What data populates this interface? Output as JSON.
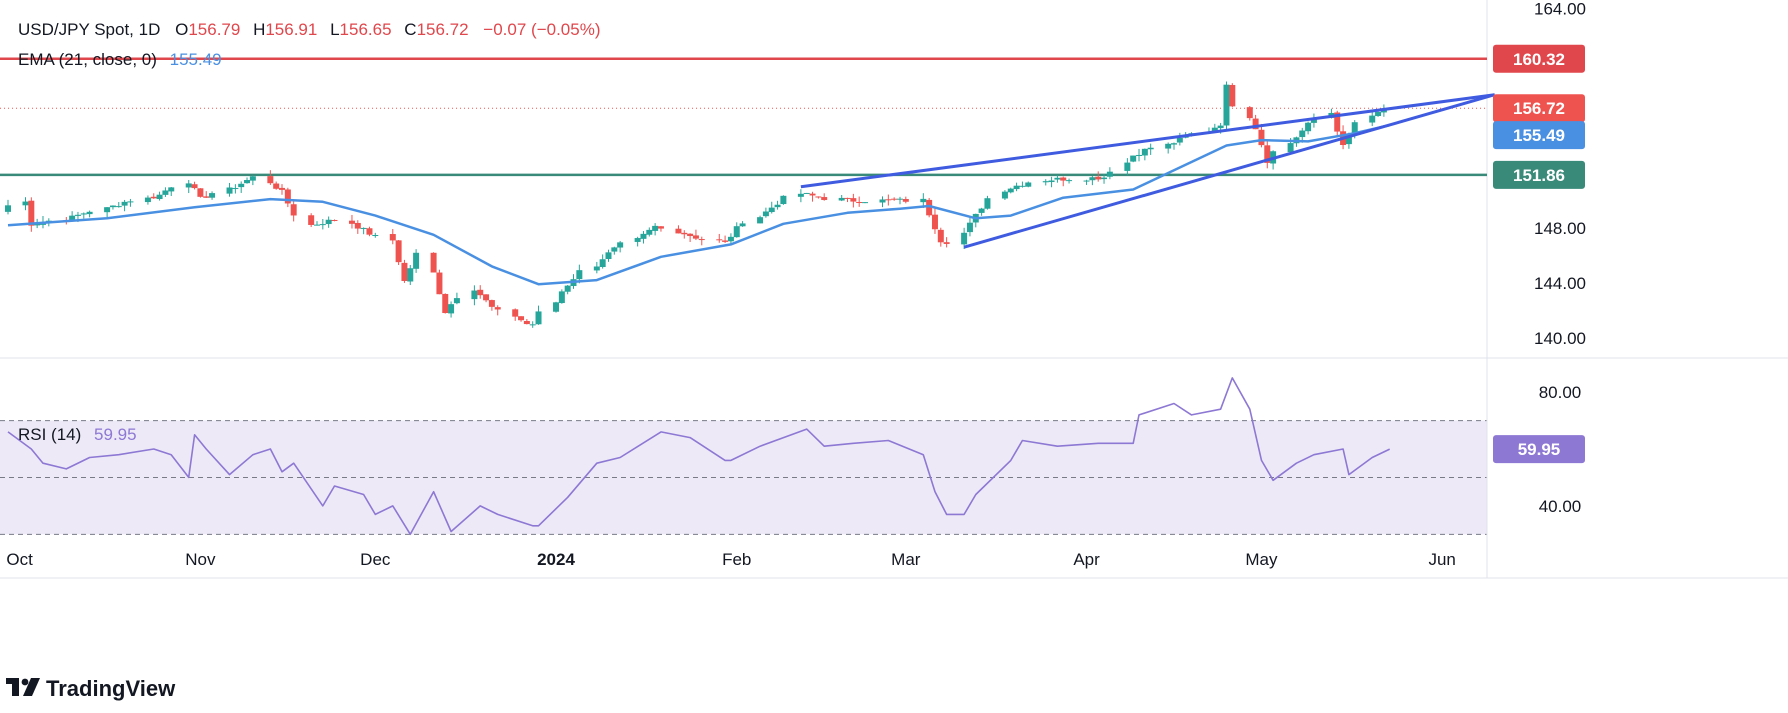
{
  "header": {
    "symbol": "USD/JPY Spot, 1D",
    "o_label": "O",
    "o_value": "156.79",
    "h_label": "H",
    "h_value": "156.91",
    "l_label": "L",
    "l_value": "156.65",
    "c_label": "C",
    "c_value": "156.72",
    "change": "−0.07 (−0.05%)"
  },
  "ema_legend": {
    "label": "EMA (21, close, 0)",
    "value": "155.49"
  },
  "rsi_legend": {
    "label": "RSI (14)",
    "value": "59.95"
  },
  "brand": {
    "name": "TradingView"
  },
  "colors": {
    "up": "#26a69a",
    "down": "#ef5350",
    "ema": "#4a90e2",
    "trend": "#3f5be0",
    "resistance": "#e0474c",
    "support": "#3a8a7a",
    "rsi": "#8d78d4",
    "rsi_band": "#ede9f7"
  },
  "chart_data": [
    {
      "type": "candlestick",
      "title": "USD/JPY Spot, 1D",
      "y_ticks": [
        140,
        144,
        148,
        152,
        156,
        160,
        164
      ],
      "y_tick_labels": [
        "140.00",
        "144.00",
        "148.00",
        "",
        "",
        "",
        "164.00"
      ],
      "ylim": [
        138.6,
        164.6
      ],
      "x_ticks": [
        "Oct",
        "Nov",
        "Dec",
        "2024",
        "Feb",
        "Mar",
        "Apr",
        "May",
        "Jun"
      ],
      "ohlc_keypoints": [
        [
          "2023-09-29",
          149.4
        ],
        [
          "2023-10-03",
          149.9
        ],
        [
          "2023-10-04",
          148.3
        ],
        [
          "2023-10-10",
          148.6
        ],
        [
          "2023-10-20",
          149.9
        ],
        [
          "2023-10-26",
          150.4
        ],
        [
          "2023-10-31",
          151.4
        ],
        [
          "2023-11-02",
          150.1
        ],
        [
          "2023-11-13",
          151.7
        ],
        [
          "2023-11-16",
          150.6
        ],
        [
          "2023-11-21",
          148.2
        ],
        [
          "2023-11-27",
          148.6
        ],
        [
          "2023-12-05",
          147.1
        ],
        [
          "2023-12-07",
          144.1
        ],
        [
          "2023-12-11",
          146.1
        ],
        [
          "2023-12-14",
          141.9
        ],
        [
          "2023-12-19",
          143.6
        ],
        [
          "2023-12-22",
          142.2
        ],
        [
          "2023-12-28",
          141.0
        ],
        [
          "2023-12-29",
          141.0
        ],
        [
          "2024-01-03",
          143.4
        ],
        [
          "2024-01-10",
          145.8
        ],
        [
          "2024-01-19",
          148.1
        ],
        [
          "2024-01-24",
          147.6
        ],
        [
          "2024-01-31",
          146.9
        ],
        [
          "2024-02-05",
          148.5
        ],
        [
          "2024-02-13",
          150.5
        ],
        [
          "2024-02-21",
          150.0
        ],
        [
          "2024-02-29",
          150.0
        ],
        [
          "2024-03-05",
          150.0
        ],
        [
          "2024-03-08",
          147.1
        ],
        [
          "2024-03-11",
          147.0
        ],
        [
          "2024-03-19",
          150.8
        ],
        [
          "2024-03-26",
          151.5
        ],
        [
          "2024-04-05",
          151.7
        ],
        [
          "2024-04-10",
          153.3
        ],
        [
          "2024-04-19",
          154.6
        ],
        [
          "2024-04-25",
          155.6
        ],
        [
          "2024-04-26",
          158.3
        ],
        [
          "2024-04-29",
          157.0
        ],
        [
          "2024-05-01",
          155.3
        ],
        [
          "2024-05-03",
          152.9
        ],
        [
          "2024-05-07",
          154.2
        ],
        [
          "2024-05-14",
          156.4
        ],
        [
          "2024-05-16",
          153.9
        ],
        [
          "2024-05-20",
          155.7
        ],
        [
          "2024-05-23",
          156.72
        ]
      ],
      "last_close": 156.72,
      "ema": {
        "name": "EMA (21, close, 0)",
        "keypoints": [
          [
            "2023-09-29",
            148.2
          ],
          [
            "2023-10-16",
            148.7
          ],
          [
            "2023-10-31",
            149.5
          ],
          [
            "2023-11-13",
            150.1
          ],
          [
            "2023-11-22",
            149.9
          ],
          [
            "2023-12-01",
            148.9
          ],
          [
            "2023-12-11",
            147.5
          ],
          [
            "2023-12-21",
            145.2
          ],
          [
            "2023-12-29",
            143.9
          ],
          [
            "2024-01-08",
            144.2
          ],
          [
            "2024-01-19",
            145.9
          ],
          [
            "2024-01-31",
            146.8
          ],
          [
            "2024-02-09",
            148.3
          ],
          [
            "2024-02-20",
            149.1
          ],
          [
            "2024-02-29",
            149.4
          ],
          [
            "2024-03-05",
            149.6
          ],
          [
            "2024-03-13",
            148.7
          ],
          [
            "2024-03-19",
            148.9
          ],
          [
            "2024-03-28",
            150.2
          ],
          [
            "2024-04-09",
            150.8
          ],
          [
            "2024-04-17",
            152.4
          ],
          [
            "2024-04-25",
            154.0
          ],
          [
            "2024-05-01",
            154.4
          ],
          [
            "2024-05-09",
            154.3
          ],
          [
            "2024-05-17",
            154.9
          ],
          [
            "2024-05-23",
            155.49
          ]
        ],
        "last": 155.49
      },
      "levels": [
        {
          "name": "resistance",
          "value": 160.32,
          "label": "160.32"
        },
        {
          "name": "support",
          "value": 151.86,
          "label": "151.86"
        }
      ],
      "price_labels": {
        "last": "156.72",
        "ema": "155.49"
      },
      "trendlines": [
        {
          "name": "upper-trendline",
          "from": [
            "2024-02-12",
            151.0
          ],
          "to": [
            "2024-06-10",
            157.7
          ]
        },
        {
          "name": "lower-trendline",
          "from": [
            "2024-03-11",
            146.6
          ],
          "to": [
            "2024-06-10",
            157.7
          ]
        }
      ]
    },
    {
      "type": "line",
      "title": "RSI (14)",
      "y_ticks": [
        40,
        80
      ],
      "y_tick_labels": [
        "40.00",
        "80.00"
      ],
      "ylim": [
        28,
        92
      ],
      "band": [
        30,
        70
      ],
      "mid_line": 50,
      "series": [
        {
          "name": "RSI (14)",
          "keypoints": [
            [
              "2023-09-29",
              66
            ],
            [
              "2023-10-03",
              60
            ],
            [
              "2023-10-05",
              55
            ],
            [
              "2023-10-09",
              53
            ],
            [
              "2023-10-13",
              57
            ],
            [
              "2023-10-18",
              58
            ],
            [
              "2023-10-24",
              60
            ],
            [
              "2023-10-27",
              58
            ],
            [
              "2023-10-30",
              50
            ],
            [
              "2023-10-31",
              65
            ],
            [
              "2023-11-02",
              60
            ],
            [
              "2023-11-06",
              51
            ],
            [
              "2023-11-10",
              58
            ],
            [
              "2023-11-13",
              60
            ],
            [
              "2023-11-15",
              52
            ],
            [
              "2023-11-17",
              55
            ],
            [
              "2023-11-22",
              40
            ],
            [
              "2023-11-24",
              47
            ],
            [
              "2023-11-29",
              44
            ],
            [
              "2023-12-01",
              37
            ],
            [
              "2023-12-04",
              40
            ],
            [
              "2023-12-07",
              30
            ],
            [
              "2023-12-11",
              45
            ],
            [
              "2023-12-14",
              31
            ],
            [
              "2023-12-19",
              40
            ],
            [
              "2023-12-22",
              37
            ],
            [
              "2023-12-28",
              33
            ],
            [
              "2023-12-29",
              33
            ],
            [
              "2024-01-03",
              43
            ],
            [
              "2024-01-08",
              55
            ],
            [
              "2024-01-12",
              57
            ],
            [
              "2024-01-19",
              66
            ],
            [
              "2024-01-24",
              64
            ],
            [
              "2024-01-30",
              56
            ],
            [
              "2024-01-31",
              56
            ],
            [
              "2024-02-05",
              61
            ],
            [
              "2024-02-13",
              67
            ],
            [
              "2024-02-16",
              61
            ],
            [
              "2024-02-21",
              62
            ],
            [
              "2024-02-27",
              63
            ],
            [
              "2024-03-04",
              58
            ],
            [
              "2024-03-06",
              45
            ],
            [
              "2024-03-08",
              37
            ],
            [
              "2024-03-11",
              37
            ],
            [
              "2024-03-13",
              44
            ],
            [
              "2024-03-19",
              56
            ],
            [
              "2024-03-21",
              63
            ],
            [
              "2024-03-27",
              61
            ],
            [
              "2024-04-03",
              62
            ],
            [
              "2024-04-09",
              62
            ],
            [
              "2024-04-10",
              72
            ],
            [
              "2024-04-16",
              76
            ],
            [
              "2024-04-19",
              72
            ],
            [
              "2024-04-24",
              74
            ],
            [
              "2024-04-26",
              85
            ],
            [
              "2024-04-29",
              74
            ],
            [
              "2024-05-01",
              56
            ],
            [
              "2024-05-03",
              49
            ],
            [
              "2024-05-07",
              55
            ],
            [
              "2024-05-10",
              58
            ],
            [
              "2024-05-15",
              60
            ],
            [
              "2024-05-16",
              51
            ],
            [
              "2024-05-20",
              57
            ],
            [
              "2024-05-23",
              59.95
            ]
          ]
        }
      ],
      "last_value": 59.95
    }
  ]
}
